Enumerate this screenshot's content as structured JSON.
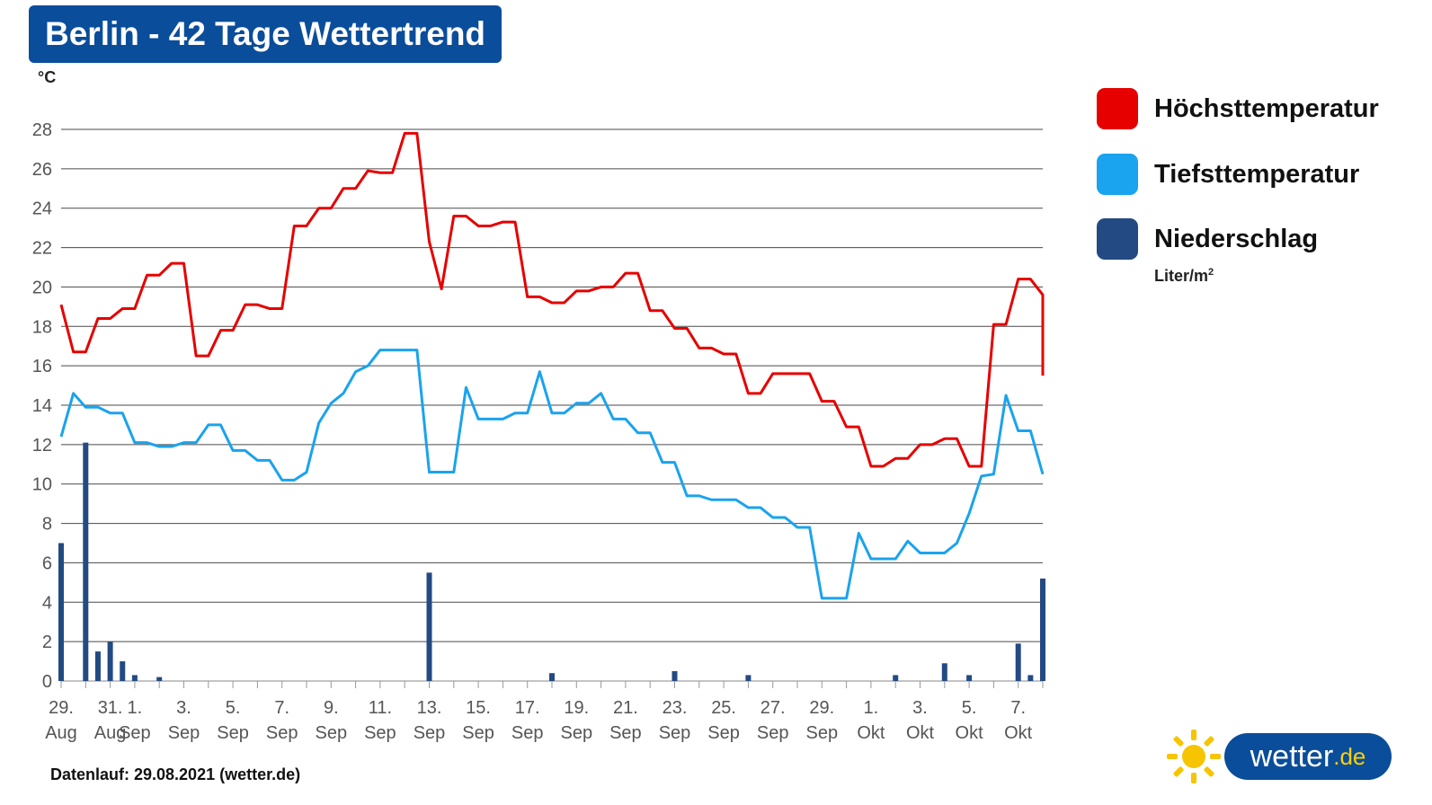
{
  "title": "Berlin - 42 Tage Wettertrend",
  "footer": "Datenlauf: 29.08.2021 (wetter.de)",
  "logo": {
    "text": "wetter",
    "tld": ".de",
    "icon": "sun-icon"
  },
  "legend": {
    "items": [
      {
        "label": "Höchsttemperatur",
        "color": "#e60000"
      },
      {
        "label": "Tiefsttemperatur",
        "color": "#1aa3ee"
      },
      {
        "label": "Niederschlag",
        "color": "#234a82"
      }
    ],
    "precip_unit": "Liter/m",
    "precip_unit_sup": "2"
  },
  "chart_data": {
    "type": "line",
    "ylabel": "°C",
    "ylim": [
      0,
      28
    ],
    "yticks": [
      0,
      2,
      4,
      6,
      8,
      10,
      12,
      14,
      16,
      18,
      20,
      22,
      24,
      26,
      28
    ],
    "grid": true,
    "legend_position": "right",
    "x": [
      "29. Aug",
      "30. Aug",
      "31. Aug",
      "1. Sep",
      "2. Sep",
      "3. Sep",
      "4. Sep",
      "5. Sep",
      "6. Sep",
      "7. Sep",
      "8. Sep",
      "9. Sep",
      "10. Sep",
      "11. Sep",
      "12. Sep",
      "13. Sep",
      "14. Sep",
      "15. Sep",
      "16. Sep",
      "17. Sep",
      "18. Sep",
      "19. Sep",
      "20. Sep",
      "21. Sep",
      "22. Sep",
      "23. Sep",
      "24. Sep",
      "25. Sep",
      "26. Sep",
      "27. Sep",
      "28. Sep",
      "29. Sep",
      "30. Sep",
      "1. Okt",
      "2. Okt",
      "3. Okt",
      "4. Okt",
      "5. Okt",
      "6. Okt",
      "7. Okt",
      "8. Okt"
    ],
    "x_tick_labels": [
      {
        "day": "29.",
        "month": "Aug"
      },
      {
        "day": "31.",
        "month": "Aug"
      },
      {
        "day": "1.",
        "month": "Sep"
      },
      {
        "day": "3.",
        "month": "Sep"
      },
      {
        "day": "5.",
        "month": "Sep"
      },
      {
        "day": "7.",
        "month": "Sep"
      },
      {
        "day": "9.",
        "month": "Sep"
      },
      {
        "day": "11.",
        "month": "Sep"
      },
      {
        "day": "13.",
        "month": "Sep"
      },
      {
        "day": "15.",
        "month": "Sep"
      },
      {
        "day": "17.",
        "month": "Sep"
      },
      {
        "day": "19.",
        "month": "Sep"
      },
      {
        "day": "21.",
        "month": "Sep"
      },
      {
        "day": "23.",
        "month": "Sep"
      },
      {
        "day": "25.",
        "month": "Sep"
      },
      {
        "day": "27.",
        "month": "Sep"
      },
      {
        "day": "29.",
        "month": "Sep"
      },
      {
        "day": "1.",
        "month": "Okt"
      },
      {
        "day": "3.",
        "month": "Okt"
      },
      {
        "day": "5.",
        "month": "Okt"
      },
      {
        "day": "7.",
        "month": "Okt"
      }
    ],
    "series": [
      {
        "name": "Höchsttemperatur",
        "color": "#e60000",
        "points": [
          [
            "29. Aug",
            19.1
          ],
          [
            "29. Aug",
            16.7
          ],
          [
            "30. Aug",
            16.7
          ],
          [
            "30. Aug",
            18.4
          ],
          [
            "31. Aug",
            18.4
          ],
          [
            "31. Aug",
            18.9
          ],
          [
            "1. Sep",
            18.9
          ],
          [
            "1. Sep",
            20.6
          ],
          [
            "2. Sep",
            20.6
          ],
          [
            "2. Sep",
            21.2
          ],
          [
            "3. Sep",
            21.2
          ],
          [
            "3. Sep",
            16.5
          ],
          [
            "4. Sep",
            16.5
          ],
          [
            "4. Sep",
            17.8
          ],
          [
            "5. Sep",
            17.8
          ],
          [
            "5. Sep",
            19.1
          ],
          [
            "6. Sep",
            19.1
          ],
          [
            "6. Sep",
            18.9
          ],
          [
            "7. Sep",
            18.9
          ],
          [
            "7. Sep",
            23.1
          ],
          [
            "8. Sep",
            23.1
          ],
          [
            "8. Sep",
            24.0
          ],
          [
            "9. Sep",
            24.0
          ],
          [
            "9. Sep",
            25.0
          ],
          [
            "10. Sep",
            25.0
          ],
          [
            "10. Sep",
            25.9
          ],
          [
            "11. Sep",
            25.8
          ],
          [
            "11. Sep",
            25.8
          ],
          [
            "12. Sep",
            27.8
          ],
          [
            "12. Sep",
            27.8
          ],
          [
            "13. Sep",
            22.3
          ],
          [
            "13. Sep",
            19.9
          ],
          [
            "14. Sep",
            23.6
          ],
          [
            "14. Sep",
            23.6
          ],
          [
            "15. Sep",
            23.1
          ],
          [
            "15. Sep",
            23.1
          ],
          [
            "16. Sep",
            23.3
          ],
          [
            "16. Sep",
            23.3
          ],
          [
            "17. Sep",
            19.5
          ],
          [
            "17. Sep",
            19.5
          ],
          [
            "18. Sep",
            19.2
          ],
          [
            "18. Sep",
            19.2
          ],
          [
            "19. Sep",
            19.8
          ],
          [
            "19. Sep",
            19.8
          ],
          [
            "20. Sep",
            20.0
          ],
          [
            "20. Sep",
            20.0
          ],
          [
            "21. Sep",
            20.7
          ],
          [
            "21. Sep",
            20.7
          ],
          [
            "22. Sep",
            18.8
          ],
          [
            "22. Sep",
            18.8
          ],
          [
            "23. Sep",
            17.9
          ],
          [
            "23. Sep",
            17.9
          ],
          [
            "24. Sep",
            16.9
          ],
          [
            "24. Sep",
            16.9
          ],
          [
            "25. Sep",
            16.6
          ],
          [
            "25. Sep",
            16.6
          ],
          [
            "26. Sep",
            14.6
          ],
          [
            "26. Sep",
            14.6
          ],
          [
            "27. Sep",
            15.6
          ],
          [
            "27. Sep",
            15.6
          ],
          [
            "28. Sep",
            15.6
          ],
          [
            "28. Sep",
            15.6
          ],
          [
            "29. Sep",
            14.2
          ],
          [
            "29. Sep",
            14.2
          ],
          [
            "30. Sep",
            12.9
          ],
          [
            "30. Sep",
            12.9
          ],
          [
            "1. Okt",
            10.9
          ],
          [
            "1. Okt",
            10.9
          ],
          [
            "2. Okt",
            11.3
          ],
          [
            "2. Okt",
            11.3
          ],
          [
            "3. Okt",
            12.0
          ],
          [
            "3. Okt",
            12.0
          ],
          [
            "4. Okt",
            12.3
          ],
          [
            "4. Okt",
            12.3
          ],
          [
            "5. Okt",
            10.9
          ],
          [
            "5. Okt",
            10.9
          ],
          [
            "6. Okt",
            18.1
          ],
          [
            "6. Okt",
            18.1
          ],
          [
            "7. Okt",
            20.4
          ],
          [
            "7. Okt",
            20.4
          ],
          [
            "8. Okt",
            19.6
          ],
          [
            "8. Okt",
            19.6
          ],
          [
            "8. Okt",
            15.5
          ]
        ]
      },
      {
        "name": "Tiefsttemperatur",
        "color": "#1aa3ee",
        "points": [
          [
            "29. Aug",
            12.4
          ],
          [
            "29. Aug",
            14.6
          ],
          [
            "30. Aug",
            13.9
          ],
          [
            "30. Aug",
            13.9
          ],
          [
            "31. Aug",
            13.6
          ],
          [
            "31. Aug",
            13.6
          ],
          [
            "1. Sep",
            12.1
          ],
          [
            "1. Sep",
            12.1
          ],
          [
            "2. Sep",
            11.9
          ],
          [
            "2. Sep",
            11.9
          ],
          [
            "3. Sep",
            12.1
          ],
          [
            "3. Sep",
            12.1
          ],
          [
            "4. Sep",
            13.0
          ],
          [
            "4. Sep",
            13.0
          ],
          [
            "5. Sep",
            11.7
          ],
          [
            "5. Sep",
            11.7
          ],
          [
            "6. Sep",
            11.2
          ],
          [
            "6. Sep",
            11.2
          ],
          [
            "7. Sep",
            10.2
          ],
          [
            "7. Sep",
            10.2
          ],
          [
            "8. Sep",
            10.6
          ],
          [
            "8. Sep",
            13.1
          ],
          [
            "9. Sep",
            14.1
          ],
          [
            "9. Sep",
            14.6
          ],
          [
            "10. Sep",
            15.7
          ],
          [
            "10. Sep",
            16.0
          ],
          [
            "11. Sep",
            16.8
          ],
          [
            "11. Sep",
            16.8
          ],
          [
            "12. Sep",
            16.8
          ],
          [
            "12. Sep",
            16.8
          ],
          [
            "13. Sep",
            10.6
          ],
          [
            "13. Sep",
            10.6
          ],
          [
            "14. Sep",
            10.6
          ],
          [
            "14. Sep",
            14.9
          ],
          [
            "15. Sep",
            13.3
          ],
          [
            "15. Sep",
            13.3
          ],
          [
            "16. Sep",
            13.3
          ],
          [
            "16. Sep",
            13.6
          ],
          [
            "17. Sep",
            13.6
          ],
          [
            "17. Sep",
            15.7
          ],
          [
            "18. Sep",
            13.6
          ],
          [
            "18. Sep",
            13.6
          ],
          [
            "19. Sep",
            14.1
          ],
          [
            "19. Sep",
            14.1
          ],
          [
            "20. Sep",
            14.6
          ],
          [
            "20. Sep",
            13.3
          ],
          [
            "21. Sep",
            13.3
          ],
          [
            "21. Sep",
            12.6
          ],
          [
            "22. Sep",
            12.6
          ],
          [
            "22. Sep",
            11.1
          ],
          [
            "23. Sep",
            11.1
          ],
          [
            "23. Sep",
            9.4
          ],
          [
            "24. Sep",
            9.4
          ],
          [
            "24. Sep",
            9.2
          ],
          [
            "25. Sep",
            9.2
          ],
          [
            "25. Sep",
            9.2
          ],
          [
            "26. Sep",
            8.8
          ],
          [
            "26. Sep",
            8.8
          ],
          [
            "27. Sep",
            8.3
          ],
          [
            "27. Sep",
            8.3
          ],
          [
            "28. Sep",
            7.8
          ],
          [
            "28. Sep",
            7.8
          ],
          [
            "29. Sep",
            4.2
          ],
          [
            "29. Sep",
            4.2
          ],
          [
            "30. Sep",
            4.2
          ],
          [
            "30. Sep",
            7.5
          ],
          [
            "1. Okt",
            6.2
          ],
          [
            "1. Okt",
            6.2
          ],
          [
            "2. Okt",
            6.2
          ],
          [
            "2. Okt",
            7.1
          ],
          [
            "3. Okt",
            6.5
          ],
          [
            "3. Okt",
            6.5
          ],
          [
            "4. Okt",
            6.5
          ],
          [
            "4. Okt",
            7.0
          ],
          [
            "5. Okt",
            8.5
          ],
          [
            "5. Okt",
            10.4
          ],
          [
            "6. Okt",
            10.5
          ],
          [
            "6. Okt",
            14.5
          ],
          [
            "7. Okt",
            12.7
          ],
          [
            "7. Okt",
            12.7
          ],
          [
            "8. Okt",
            10.5
          ],
          [
            "8. Okt",
            10.5
          ]
        ]
      }
    ],
    "precipitation": {
      "name": "Niederschlag",
      "unit": "Liter/m²",
      "color": "#234a82",
      "bars": [
        [
          "29. Aug",
          7.0
        ],
        [
          "30. Aug",
          12.1
        ],
        [
          "30. Aug",
          1.5
        ],
        [
          "31. Aug",
          2.0
        ],
        [
          "31. Aug",
          1.0
        ],
        [
          "1. Sep",
          0.3
        ],
        [
          "2. Sep",
          0.2
        ],
        [
          "13. Sep",
          5.5
        ],
        [
          "18. Sep",
          0.4
        ],
        [
          "23. Sep",
          0.5
        ],
        [
          "26. Sep",
          0.3
        ],
        [
          "2. Okt",
          0.3
        ],
        [
          "4. Okt",
          0.9
        ],
        [
          "5. Okt",
          0.3
        ],
        [
          "7. Okt",
          1.9
        ],
        [
          "7. Okt",
          0.3
        ],
        [
          "8. Okt",
          5.2
        ]
      ]
    }
  }
}
